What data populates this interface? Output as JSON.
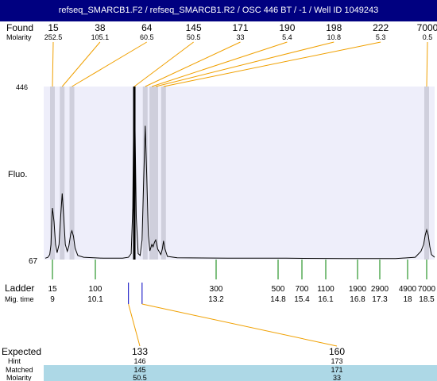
{
  "title": "refseq_SMARCB1.F2 / refseq_SMARCB1.R2 / OSC 446 BT / -1 / Well ID 1049243",
  "labels": {
    "found": "Found",
    "molarity": "Molarity",
    "fluo": "Fluo.",
    "ladder": "Ladder",
    "mig_time": "Mig. time",
    "expected": "Expected",
    "hint": "Hint",
    "matched": "Matched",
    "molarity_bottom": "Molarity"
  },
  "colors": {
    "title_bg": "#000080",
    "plot_bg": "#eeeefa",
    "band": "#cfcfdc",
    "found_leader": "#f0a000",
    "ladder_tick": "#008000",
    "expected_tick": "#0000c0",
    "table_band": "#add8e6"
  },
  "chart_data": {
    "type": "line",
    "title": "refseq_SMARCB1.F2 / refseq_SMARCB1.R2 / OSC 446 BT / -1 / Well ID 1049243",
    "ylabel": "Fluo.",
    "ylim": [
      67,
      446
    ],
    "y_ticks": [
      "446",
      "67"
    ],
    "xlim": [
      8.6,
      18.7
    ],
    "found_peaks": [
      {
        "size": "15",
        "molarity": "252.5",
        "time": 9.0
      },
      {
        "size": "38",
        "molarity": "105.1",
        "time": 9.25
      },
      {
        "size": "64",
        "molarity": "60.5",
        "time": 9.5
      },
      {
        "size": "145",
        "molarity": "50.5",
        "time": 11.1
      },
      {
        "size": "171",
        "molarity": "33",
        "time": 11.38
      },
      {
        "size": "190",
        "molarity": "5.4",
        "time": 11.55
      },
      {
        "size": "198",
        "molarity": "10.8",
        "time": 11.65
      },
      {
        "size": "222",
        "molarity": "5.3",
        "time": 11.85
      },
      {
        "size": "7000",
        "molarity": "0.5",
        "time": 18.5
      }
    ],
    "ladder": [
      {
        "size": "15",
        "time": "9"
      },
      {
        "size": "100",
        "time": "10.1"
      },
      {
        "size": "300",
        "time": "13.2"
      },
      {
        "size": "500",
        "time": "14.8"
      },
      {
        "size": "700",
        "time": "15.4"
      },
      {
        "size": "1100",
        "time": "16.1"
      },
      {
        "size": "1900",
        "time": "16.8"
      },
      {
        "size": "2900",
        "time": "17.3"
      },
      {
        "size": "4900",
        "time": "18"
      },
      {
        "size": "7000",
        "time": "18.5"
      }
    ],
    "expected": [
      {
        "expected": "133",
        "hint": "146",
        "matched": "145",
        "molarity": "50.5",
        "time": 10.95
      },
      {
        "expected": "160",
        "hint": "173",
        "matched": "171",
        "molarity": "33",
        "time": 11.3
      }
    ],
    "trace": [
      [
        8.6,
        70
      ],
      [
        8.75,
        72
      ],
      [
        8.85,
        78
      ],
      [
        8.92,
        100
      ],
      [
        8.97,
        160
      ],
      [
        9.0,
        180
      ],
      [
        9.04,
        150
      ],
      [
        9.08,
        100
      ],
      [
        9.12,
        82
      ],
      [
        9.17,
        100
      ],
      [
        9.21,
        160
      ],
      [
        9.25,
        212
      ],
      [
        9.29,
        160
      ],
      [
        9.33,
        100
      ],
      [
        9.38,
        85
      ],
      [
        9.42,
        96
      ],
      [
        9.47,
        124
      ],
      [
        9.5,
        130
      ],
      [
        9.54,
        118
      ],
      [
        9.58,
        92
      ],
      [
        9.65,
        76
      ],
      [
        9.8,
        72
      ],
      [
        10.3,
        70
      ],
      [
        10.8,
        70
      ],
      [
        10.95,
        72
      ],
      [
        11.02,
        80
      ],
      [
        11.06,
        180
      ],
      [
        11.08,
        350
      ],
      [
        11.1,
        446
      ],
      [
        11.12,
        350
      ],
      [
        11.15,
        160
      ],
      [
        11.2,
        80
      ],
      [
        11.25,
        76
      ],
      [
        11.3,
        110
      ],
      [
        11.34,
        240
      ],
      [
        11.38,
        360
      ],
      [
        11.42,
        250
      ],
      [
        11.46,
        120
      ],
      [
        11.5,
        86
      ],
      [
        11.55,
        100
      ],
      [
        11.58,
        95
      ],
      [
        11.62,
        105
      ],
      [
        11.65,
        110
      ],
      [
        11.7,
        90
      ],
      [
        11.78,
        78
      ],
      [
        11.82,
        90
      ],
      [
        11.85,
        108
      ],
      [
        11.88,
        92
      ],
      [
        11.95,
        74
      ],
      [
        12.2,
        71
      ],
      [
        13.5,
        70
      ],
      [
        15.0,
        70
      ],
      [
        16.5,
        69
      ],
      [
        17.7,
        69
      ],
      [
        18.2,
        72
      ],
      [
        18.35,
        85
      ],
      [
        18.42,
        100
      ],
      [
        18.46,
        120
      ],
      [
        18.5,
        132
      ],
      [
        18.54,
        120
      ],
      [
        18.58,
        95
      ],
      [
        18.62,
        78
      ],
      [
        18.7,
        72
      ]
    ]
  }
}
